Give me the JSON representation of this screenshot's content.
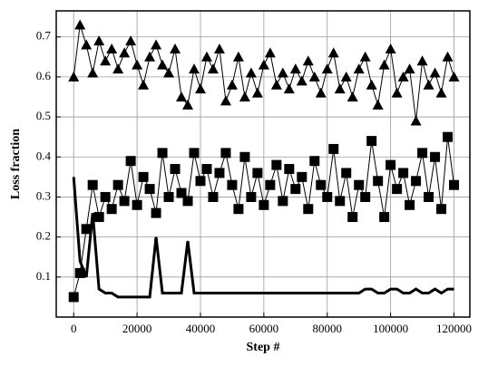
{
  "chart_data": {
    "type": "line",
    "x_label": "Step #",
    "y_label": "Loss fraction",
    "x": [
      0,
      2000,
      4000,
      6000,
      8000,
      10000,
      12000,
      14000,
      16000,
      18000,
      20000,
      22000,
      24000,
      26000,
      28000,
      30000,
      32000,
      34000,
      36000,
      38000,
      40000,
      42000,
      44000,
      46000,
      48000,
      50000,
      52000,
      54000,
      56000,
      58000,
      60000,
      62000,
      64000,
      66000,
      68000,
      70000,
      72000,
      74000,
      76000,
      78000,
      80000,
      82000,
      84000,
      86000,
      88000,
      90000,
      92000,
      94000,
      96000,
      98000,
      100000,
      102000,
      104000,
      106000,
      108000,
      110000,
      112000,
      114000,
      116000,
      118000,
      120000
    ],
    "series": [
      {
        "color": "#000000",
        "marker": "triangle",
        "values": [
          0.6,
          0.73,
          0.68,
          0.61,
          0.69,
          0.64,
          0.67,
          0.62,
          0.66,
          0.69,
          0.63,
          0.58,
          0.65,
          0.68,
          0.63,
          0.61,
          0.67,
          0.55,
          0.53,
          0.62,
          0.57,
          0.65,
          0.62,
          0.67,
          0.54,
          0.58,
          0.65,
          0.55,
          0.61,
          0.56,
          0.63,
          0.66,
          0.58,
          0.61,
          0.57,
          0.62,
          0.59,
          0.64,
          0.6,
          0.56,
          0.62,
          0.66,
          0.57,
          0.6,
          0.55,
          0.62,
          0.65,
          0.58,
          0.53,
          0.63,
          0.67,
          0.56,
          0.6,
          0.62,
          0.49,
          0.64,
          0.58,
          0.61,
          0.56,
          0.65,
          0.6
        ]
      },
      {
        "color": "#000000",
        "marker": "square",
        "values": [
          0.05,
          0.11,
          0.22,
          0.33,
          0.25,
          0.3,
          0.27,
          0.33,
          0.29,
          0.39,
          0.28,
          0.35,
          0.32,
          0.26,
          0.41,
          0.3,
          0.37,
          0.31,
          0.29,
          0.41,
          0.34,
          0.37,
          0.3,
          0.36,
          0.41,
          0.33,
          0.27,
          0.4,
          0.3,
          0.36,
          0.28,
          0.33,
          0.38,
          0.29,
          0.37,
          0.32,
          0.35,
          0.27,
          0.39,
          0.33,
          0.3,
          0.42,
          0.29,
          0.36,
          0.25,
          0.33,
          0.3,
          0.44,
          0.34,
          0.25,
          0.38,
          0.32,
          0.36,
          0.28,
          0.34,
          0.41,
          0.3,
          0.4,
          0.27,
          0.45,
          0.33
        ]
      },
      {
        "color": "#000000",
        "marker": "none",
        "values": [
          0.35,
          0.14,
          0.1,
          0.26,
          0.07,
          0.06,
          0.06,
          0.05,
          0.05,
          0.05,
          0.05,
          0.05,
          0.05,
          0.2,
          0.06,
          0.06,
          0.06,
          0.06,
          0.19,
          0.06,
          0.06,
          0.06,
          0.06,
          0.06,
          0.06,
          0.06,
          0.06,
          0.06,
          0.06,
          0.06,
          0.06,
          0.06,
          0.06,
          0.06,
          0.06,
          0.06,
          0.06,
          0.06,
          0.06,
          0.06,
          0.06,
          0.06,
          0.06,
          0.06,
          0.06,
          0.06,
          0.07,
          0.07,
          0.06,
          0.06,
          0.07,
          0.07,
          0.06,
          0.06,
          0.07,
          0.06,
          0.06,
          0.07,
          0.06,
          0.07,
          0.07
        ]
      }
    ],
    "xlim": [
      -5500,
      125000
    ],
    "ylim": [
      0,
      0.765
    ],
    "xticks": [
      0,
      20000,
      40000,
      60000,
      80000,
      100000,
      120000
    ],
    "yticks": [
      0.1,
      0.2,
      0.3,
      0.4,
      0.5,
      0.6,
      0.7
    ],
    "grid": true
  }
}
